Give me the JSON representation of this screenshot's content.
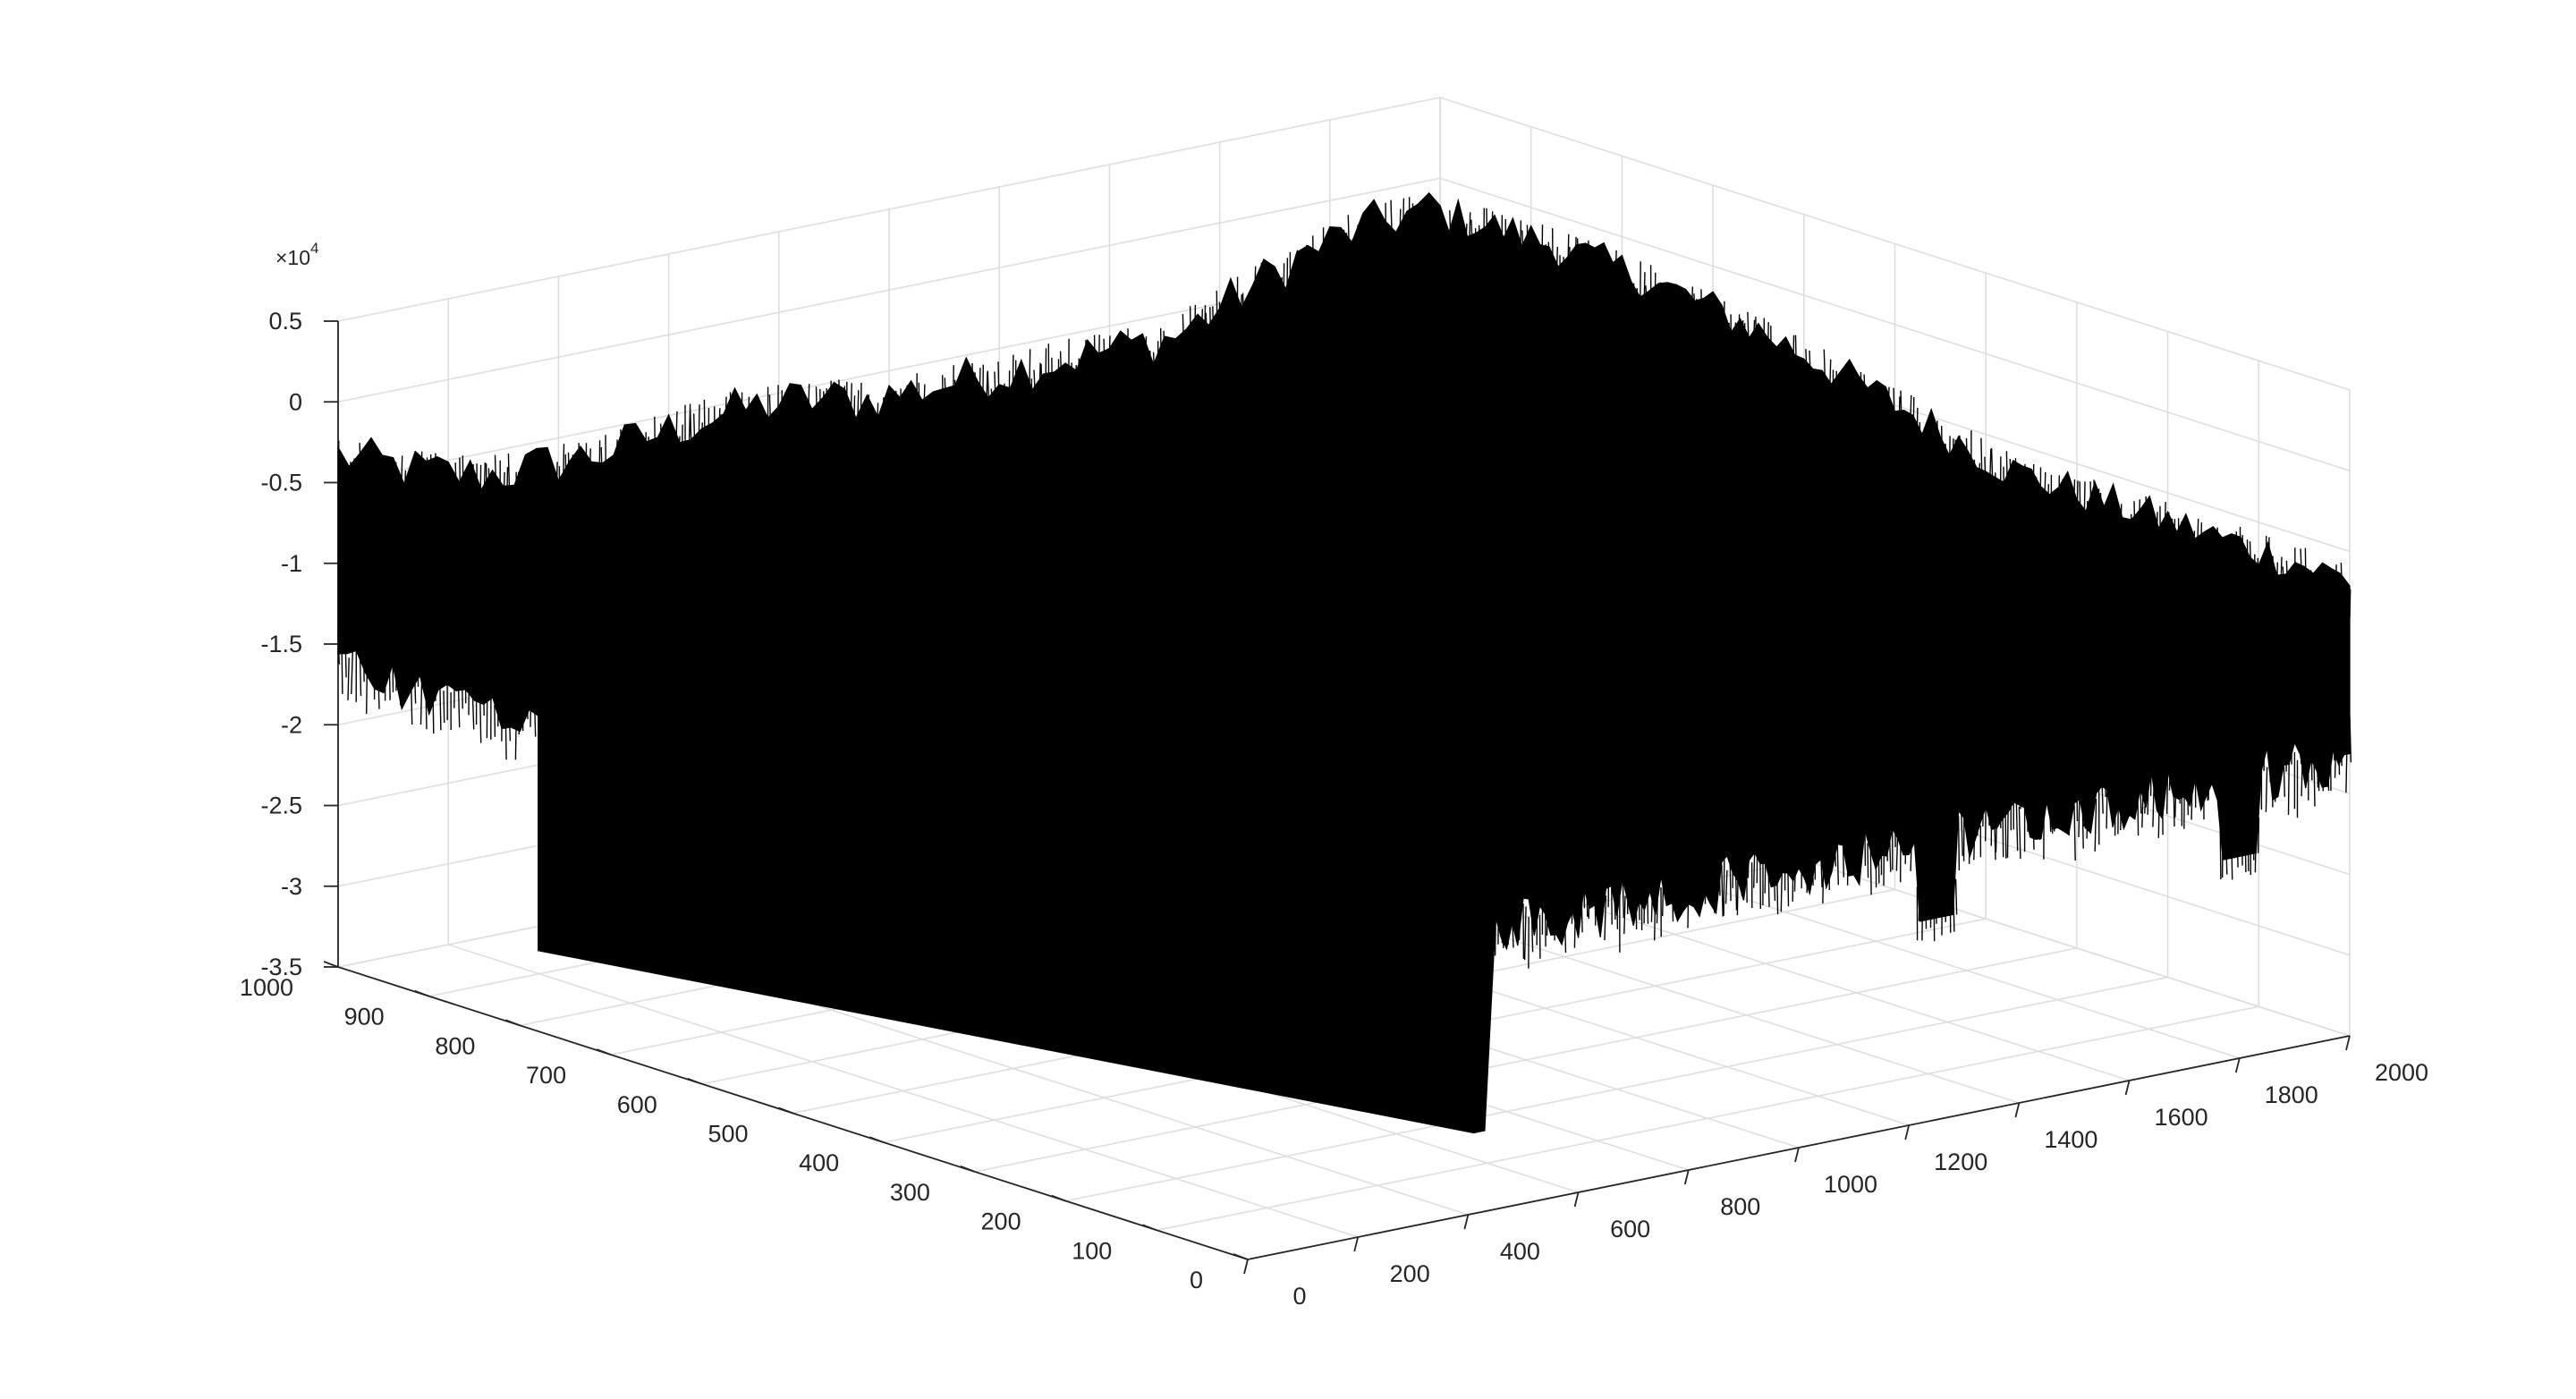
{
  "figure": {
    "background": "#ffffff",
    "line_color": "#000000",
    "grid_color": "#dedede",
    "axis_color": "#262626"
  },
  "chart_data": {
    "type": "surface-3d",
    "title": "",
    "xlabel": "",
    "ylabel": "",
    "zlabel": "",
    "view": "3-D perspective, x axis along front-right edge, y axis along front-left edge",
    "grid": true,
    "legend": "none",
    "x_axis": {
      "lim": [
        0,
        2000
      ],
      "ticks": [
        0,
        200,
        400,
        600,
        800,
        1000,
        1200,
        1400,
        1600,
        1800,
        2000
      ],
      "tick_labels": [
        "0",
        "200",
        "400",
        "600",
        "800",
        "1000",
        "1200",
        "1400",
        "1600",
        "1800",
        "2000"
      ]
    },
    "y_axis": {
      "lim": [
        0,
        1000
      ],
      "ticks": [
        0,
        100,
        200,
        300,
        400,
        500,
        600,
        700,
        800,
        900,
        1000
      ],
      "tick_labels": [
        "0",
        "100",
        "200",
        "300",
        "400",
        "500",
        "600",
        "700",
        "800",
        "900",
        "1000"
      ]
    },
    "z_axis": {
      "lim": [
        -35000,
        5000
      ],
      "ticks": [
        -35000,
        -30000,
        -25000,
        -20000,
        -15000,
        -10000,
        -5000,
        0,
        5000
      ],
      "tick_labels": [
        "-3.5",
        "-3",
        "-2.5",
        "-2",
        "-1.5",
        "-1",
        "-0.5",
        "0",
        "0.5"
      ],
      "exponent_label": "×10",
      "exponent_power": "4"
    },
    "surface": {
      "description_of_shape": "dense noisy mesh, top near 0 to 5000, dropping toward -30000 at front edges",
      "top_level_approx": [
        -8000,
        3500
      ],
      "low_front_edge_z": -30000,
      "notch_x_range": [
        0,
        450
      ],
      "notch_y_range": [
        0,
        780
      ],
      "dips_along_x": [
        1250,
        1800
      ]
    }
  }
}
